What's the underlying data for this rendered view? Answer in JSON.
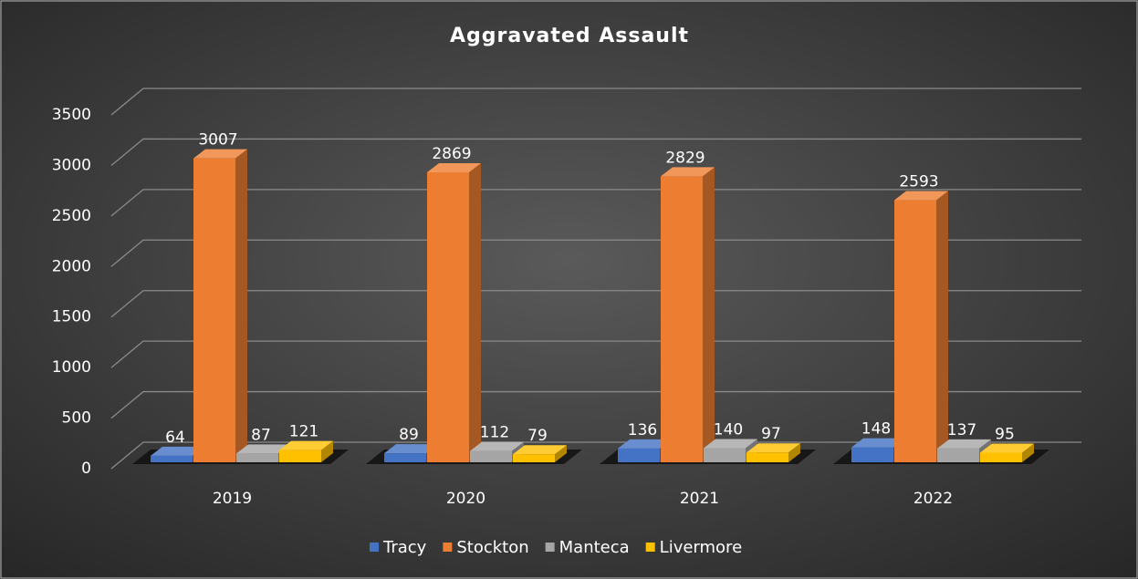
{
  "chart_data": {
    "type": "bar3d",
    "title": "Aggravated Assault",
    "categories": [
      "2019",
      "2020",
      "2021",
      "2022"
    ],
    "series": [
      {
        "name": "Tracy",
        "color": "#4472c4",
        "values": [
          64,
          89,
          136,
          148
        ]
      },
      {
        "name": "Stockton",
        "color": "#ed7d31",
        "values": [
          3007,
          2869,
          2829,
          2593
        ]
      },
      {
        "name": "Manteca",
        "color": "#a5a5a5",
        "values": [
          87,
          112,
          140,
          137
        ]
      },
      {
        "name": "Livermore",
        "color": "#ffc000",
        "values": [
          121,
          79,
          97,
          95
        ]
      }
    ],
    "ylim": [
      0,
      3500
    ],
    "yticks": [
      0,
      500,
      1000,
      1500,
      2000,
      2500,
      3000,
      3500
    ],
    "grid": true,
    "legend": "bottom"
  }
}
